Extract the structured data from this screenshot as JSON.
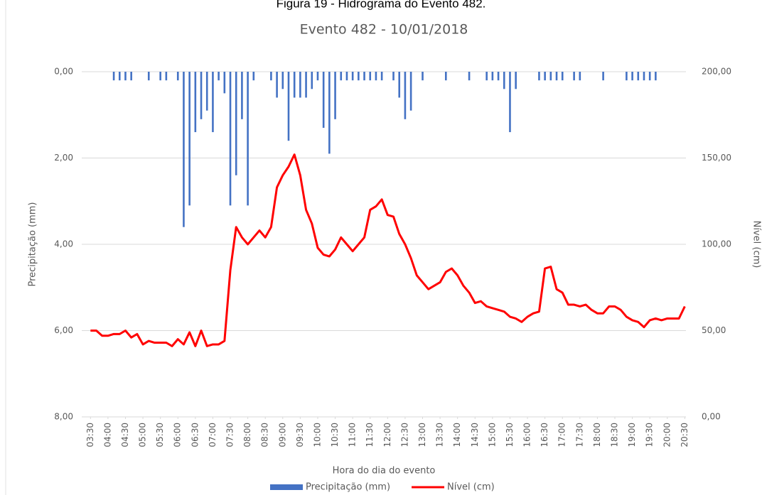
{
  "chart_data": {
    "type": "combo",
    "title": "Figura 19 - Hidrograma do Evento 482.",
    "subtitle": "Evento 482 - 10/01/2018",
    "x_label": "Hora do dia do evento",
    "y_label": "Precipitação (mm)",
    "y2_label": "Nível (cm)",
    "x": [
      210,
      220,
      230,
      240,
      250,
      260,
      270,
      280,
      290,
      300,
      310,
      320,
      330,
      340,
      350,
      360,
      370,
      380,
      390,
      400,
      410,
      420,
      430,
      440,
      450,
      460,
      470,
      480,
      490,
      500,
      510,
      520,
      530,
      540,
      550,
      560,
      570,
      580,
      590,
      600,
      610,
      620,
      630,
      640,
      650,
      660,
      670,
      680,
      690,
      700,
      710,
      720,
      730,
      740,
      750,
      760,
      770,
      780,
      790,
      800,
      810,
      820,
      830,
      840,
      850,
      860,
      870,
      880,
      890,
      900,
      910,
      920,
      930,
      940,
      950,
      960,
      970,
      980,
      990,
      1000,
      1010,
      1020,
      1030,
      1040,
      1050,
      1060,
      1070,
      1080,
      1090,
      1100,
      1110,
      1120,
      1130,
      1140,
      1150,
      1160,
      1170,
      1180,
      1190,
      1200,
      1210,
      1220,
      1230
    ],
    "xlim": [
      195,
      1232
    ],
    "xticks": [
      {
        "value": 210,
        "label": "03:30"
      },
      {
        "value": 240,
        "label": "04:00"
      },
      {
        "value": 270,
        "label": "04:30"
      },
      {
        "value": 300,
        "label": "05:00"
      },
      {
        "value": 330,
        "label": "05:30"
      },
      {
        "value": 360,
        "label": "06:00"
      },
      {
        "value": 390,
        "label": "06:30"
      },
      {
        "value": 420,
        "label": "07:00"
      },
      {
        "value": 450,
        "label": "07:30"
      },
      {
        "value": 480,
        "label": "08:00"
      },
      {
        "value": 510,
        "label": "08:30"
      },
      {
        "value": 540,
        "label": "09:00"
      },
      {
        "value": 570,
        "label": "09:30"
      },
      {
        "value": 600,
        "label": "10:00"
      },
      {
        "value": 630,
        "label": "10:30"
      },
      {
        "value": 660,
        "label": "11:00"
      },
      {
        "value": 690,
        "label": "11:30"
      },
      {
        "value": 720,
        "label": "12:00"
      },
      {
        "value": 750,
        "label": "12:30"
      },
      {
        "value": 780,
        "label": "13:00"
      },
      {
        "value": 810,
        "label": "13:30"
      },
      {
        "value": 840,
        "label": "14:00"
      },
      {
        "value": 870,
        "label": "14:30"
      },
      {
        "value": 900,
        "label": "15:00"
      },
      {
        "value": 930,
        "label": "15:30"
      },
      {
        "value": 960,
        "label": "16:00"
      },
      {
        "value": 990,
        "label": "16:30"
      },
      {
        "value": 1020,
        "label": "17:00"
      },
      {
        "value": 1050,
        "label": "17:30"
      },
      {
        "value": 1080,
        "label": "18:00"
      },
      {
        "value": 1110,
        "label": "18:30"
      },
      {
        "value": 1140,
        "label": "19:00"
      },
      {
        "value": 1170,
        "label": "19:30"
      },
      {
        "value": 1200,
        "label": "20:00"
      },
      {
        "value": 1230,
        "label": "20:30"
      }
    ],
    "ylim": [
      0,
      8
    ],
    "y_inverted": true,
    "yticks": [
      {
        "value": 0,
        "label": "0,00"
      },
      {
        "value": 2,
        "label": "2,00"
      },
      {
        "value": 4,
        "label": "4,00"
      },
      {
        "value": 6,
        "label": "6,00"
      },
      {
        "value": 8,
        "label": "8,00"
      }
    ],
    "y2lim": [
      0,
      200
    ],
    "y2ticks": [
      {
        "value": 0,
        "label": "0,00"
      },
      {
        "value": 50,
        "label": "50,00"
      },
      {
        "value": 100,
        "label": "100,00"
      },
      {
        "value": 150,
        "label": "150,00"
      },
      {
        "value": 200,
        "label": "200,00"
      }
    ],
    "grid": true,
    "legend": "bottom",
    "series": [
      {
        "name": "Precipitação (mm)",
        "type": "bar",
        "axis": "y",
        "color": "#4472c4",
        "values": [
          0,
          0,
          0,
          0,
          0.2,
          0.2,
          0.2,
          0.2,
          0,
          0,
          0.2,
          0,
          0.2,
          0.2,
          0,
          0.2,
          3.6,
          3.1,
          1.4,
          1.1,
          0.9,
          1.4,
          0.2,
          0.5,
          3.1,
          2.4,
          1.1,
          3.1,
          0.2,
          0,
          0,
          0.2,
          0.6,
          0.4,
          1.6,
          0.6,
          0.6,
          0.6,
          0.4,
          0.2,
          1.3,
          1.9,
          1.1,
          0.2,
          0.2,
          0.2,
          0.2,
          0.2,
          0.2,
          0.2,
          0.2,
          0,
          0.2,
          0.6,
          1.1,
          0.9,
          0,
          0.2,
          0,
          0,
          0,
          0.2,
          0,
          0,
          0,
          0.2,
          0,
          0,
          0.2,
          0.2,
          0.2,
          0.4,
          1.4,
          0.4,
          0,
          0,
          0,
          0.2,
          0.2,
          0.2,
          0.2,
          0.2,
          0,
          0.2,
          0.2,
          0,
          0,
          0,
          0.2,
          0,
          0,
          0,
          0.2,
          0.2,
          0.2,
          0.2,
          0.2,
          0.2,
          0,
          0,
          0,
          0,
          0
        ]
      },
      {
        "name": "Nível (cm)",
        "type": "line",
        "axis": "y2",
        "color": "#ff0000",
        "values": [
          50,
          50,
          47,
          47,
          48,
          48,
          50,
          46,
          48,
          42,
          44,
          43,
          43,
          43,
          41,
          45,
          42,
          49,
          41,
          50,
          41,
          42,
          42,
          44,
          85,
          110,
          104,
          100,
          104,
          108,
          104,
          110,
          133,
          140,
          145,
          152,
          140,
          120,
          112,
          98,
          94,
          93,
          97,
          104,
          100,
          96,
          100,
          104,
          120,
          122,
          126,
          117,
          116,
          106,
          100,
          92,
          82,
          78,
          74,
          76,
          78,
          84,
          86,
          82,
          76,
          72,
          66,
          67,
          64,
          63,
          62,
          61,
          58,
          57,
          55,
          58,
          60,
          61,
          86,
          87,
          74,
          72,
          65,
          65,
          64,
          65,
          62,
          60,
          60,
          64,
          64,
          62,
          58,
          56,
          55,
          52,
          56,
          57,
          56,
          57,
          57,
          57,
          64
        ]
      }
    ]
  }
}
